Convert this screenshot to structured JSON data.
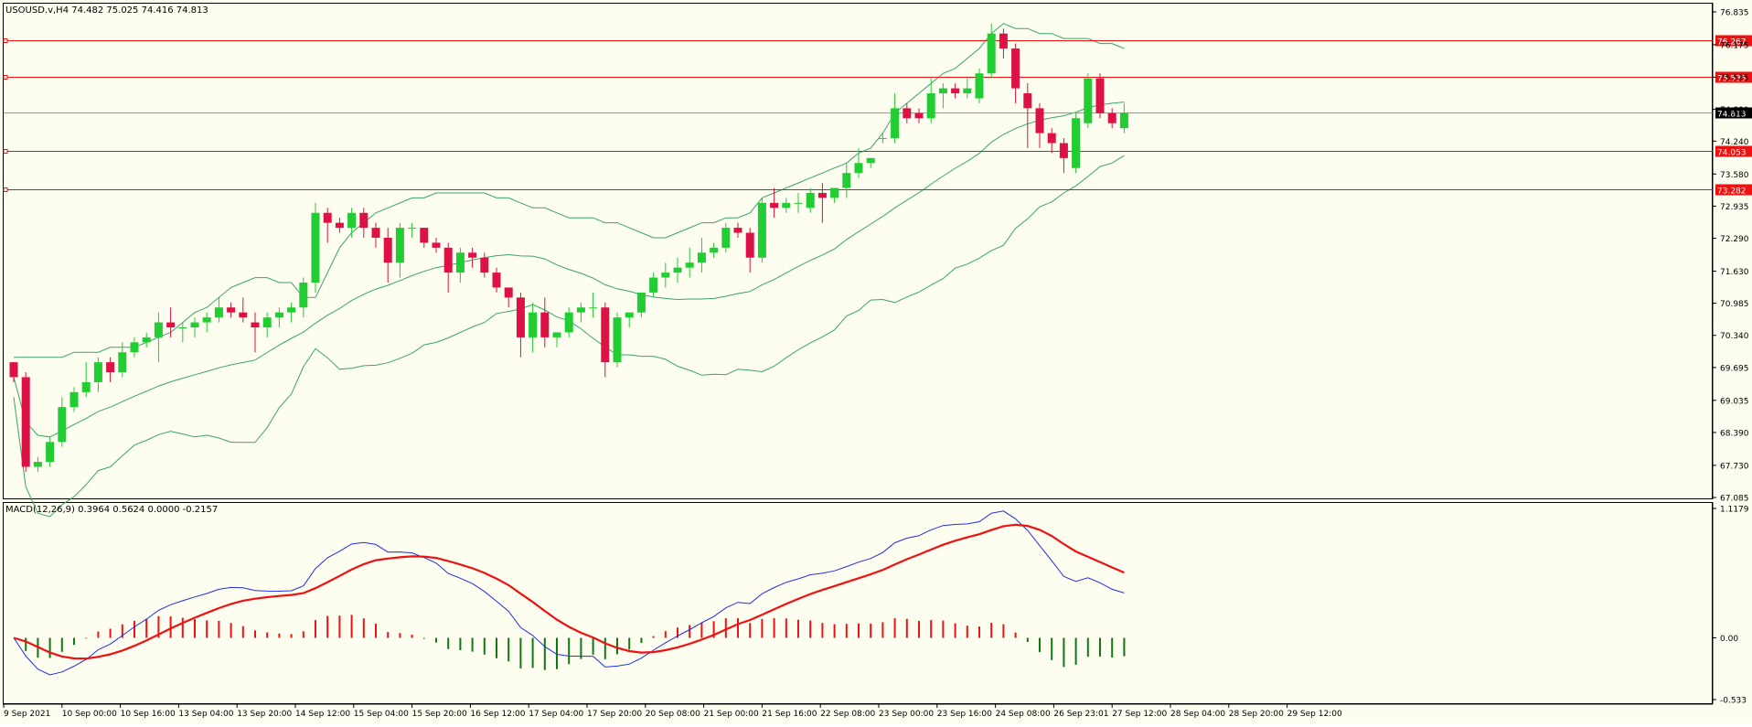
{
  "main": {
    "header": "USOUSD.v,H4  74.482 75.025 74.416 74.813"
  },
  "macd": {
    "header": "MACD(12,26,9) 0.3964 0.5624 0.0000 -0.2157"
  },
  "colors": {
    "background": "#fdfdf0",
    "bull": "#22cc33",
    "bear": "#dd1144",
    "bands": "#3aa56a",
    "hline": "#ee1111",
    "last_price_line": "#8899bb",
    "macd_line": "#1f2fe0",
    "signal_line": "#ee1111",
    "hist_pos": "#ee1111",
    "hist_neg": "#117711"
  },
  "chart_data": [
    {
      "type": "candlestick",
      "title": "USOUSD.v,H4  74.482 75.025 74.416 74.813",
      "y_ticks": [
        "76.835",
        "76.175",
        "75.525",
        "74.880",
        "74.240",
        "73.580",
        "72.935",
        "72.290",
        "71.630",
        "70.985",
        "70.340",
        "69.695",
        "69.035",
        "68.390",
        "67.730",
        "67.085"
      ],
      "ylim": [
        67.085,
        76.835
      ],
      "x_ticks": [
        "9 Sep 2021",
        "10 Sep 00:00",
        "10 Sep 16:00",
        "13 Sep 04:00",
        "13 Sep 20:00",
        "14 Sep 12:00",
        "15 Sep 04:00",
        "15 Sep 20:00",
        "16 Sep 12:00",
        "17 Sep 04:00",
        "17 Sep 20:00",
        "20 Sep 08:00",
        "21 Sep 00:00",
        "21 Sep 16:00",
        "22 Sep 08:00",
        "23 Sep 00:00",
        "23 Sep 16:00",
        "24 Sep 08:00",
        "26 Sep 23:01",
        "27 Sep 12:00",
        "28 Sep 04:00",
        "28 Sep 20:00",
        "29 Sep 12:00"
      ],
      "horizontal_lines": [
        76.267,
        75.535,
        74.053,
        73.282
      ],
      "price_labels": [
        "76.267",
        "75.535",
        "74.053",
        "73.282"
      ],
      "last_price": 74.813,
      "last_price_label": "74.813",
      "candles": [
        [
          69.8,
          69.8,
          69.4,
          69.5
        ],
        [
          69.5,
          69.6,
          67.6,
          67.7
        ],
        [
          67.7,
          67.9,
          67.6,
          67.8
        ],
        [
          67.8,
          68.3,
          67.7,
          68.2
        ],
        [
          68.2,
          69.1,
          68.1,
          68.9
        ],
        [
          68.9,
          69.3,
          68.8,
          69.2
        ],
        [
          69.2,
          69.8,
          69.1,
          69.4
        ],
        [
          69.4,
          69.9,
          69.2,
          69.8
        ],
        [
          69.8,
          69.9,
          69.4,
          69.6
        ],
        [
          69.6,
          70.2,
          69.5,
          70.0
        ],
        [
          70.0,
          70.3,
          69.9,
          70.2
        ],
        [
          70.2,
          70.4,
          70.1,
          70.3
        ],
        [
          70.3,
          70.8,
          69.8,
          70.6
        ],
        [
          70.6,
          70.9,
          70.3,
          70.5
        ],
        [
          70.5,
          70.6,
          70.2,
          70.5
        ],
        [
          70.5,
          70.7,
          70.3,
          70.6
        ],
        [
          70.6,
          70.8,
          70.4,
          70.7
        ],
        [
          70.7,
          71.1,
          70.6,
          70.9
        ],
        [
          70.9,
          71.0,
          70.7,
          70.8
        ],
        [
          70.8,
          71.1,
          70.6,
          70.7
        ],
        [
          70.6,
          70.8,
          70.0,
          70.5
        ],
        [
          70.5,
          70.8,
          70.3,
          70.7
        ],
        [
          70.7,
          70.9,
          70.5,
          70.8
        ],
        [
          70.8,
          71.0,
          70.6,
          70.9
        ],
        [
          70.9,
          71.5,
          70.7,
          71.4
        ],
        [
          71.4,
          73.0,
          71.2,
          72.8
        ],
        [
          72.8,
          72.9,
          72.2,
          72.6
        ],
        [
          72.6,
          72.7,
          72.4,
          72.5
        ],
        [
          72.5,
          72.9,
          72.3,
          72.8
        ],
        [
          72.8,
          72.9,
          72.3,
          72.5
        ],
        [
          72.5,
          72.6,
          72.1,
          72.3
        ],
        [
          72.3,
          72.5,
          71.4,
          71.8
        ],
        [
          71.8,
          72.6,
          71.5,
          72.5
        ],
        [
          72.5,
          72.6,
          72.3,
          72.5
        ],
        [
          72.5,
          72.5,
          72.1,
          72.2
        ],
        [
          72.2,
          72.3,
          72.0,
          72.1
        ],
        [
          72.1,
          72.2,
          71.2,
          71.6
        ],
        [
          71.6,
          72.1,
          71.4,
          72.0
        ],
        [
          72.0,
          72.1,
          71.7,
          71.9
        ],
        [
          71.9,
          72.0,
          71.5,
          71.6
        ],
        [
          71.6,
          71.7,
          71.2,
          71.3
        ],
        [
          71.3,
          71.3,
          70.9,
          71.1
        ],
        [
          71.1,
          71.2,
          69.9,
          70.3
        ],
        [
          70.3,
          71.0,
          70.0,
          70.8
        ],
        [
          70.8,
          71.1,
          70.1,
          70.3
        ],
        [
          70.3,
          70.4,
          70.1,
          70.4
        ],
        [
          70.4,
          70.9,
          70.3,
          70.8
        ],
        [
          70.8,
          71.0,
          70.6,
          70.9
        ],
        [
          70.9,
          71.2,
          70.7,
          70.9
        ],
        [
          70.9,
          71.0,
          69.5,
          69.8
        ],
        [
          69.8,
          70.8,
          69.7,
          70.7
        ],
        [
          70.7,
          70.8,
          70.5,
          70.8
        ],
        [
          70.8,
          71.2,
          70.7,
          71.2
        ],
        [
          71.2,
          71.6,
          71.1,
          71.5
        ],
        [
          71.5,
          71.8,
          71.3,
          71.6
        ],
        [
          71.6,
          71.9,
          71.4,
          71.7
        ],
        [
          71.7,
          72.1,
          71.5,
          71.8
        ],
        [
          71.8,
          72.3,
          71.6,
          72.0
        ],
        [
          72.0,
          72.2,
          71.9,
          72.1
        ],
        [
          72.1,
          72.6,
          72.0,
          72.5
        ],
        [
          72.5,
          72.6,
          72.3,
          72.4
        ],
        [
          72.4,
          72.5,
          71.6,
          71.9
        ],
        [
          71.9,
          73.1,
          71.8,
          73.0
        ],
        [
          73.0,
          73.3,
          72.7,
          72.9
        ],
        [
          72.9,
          73.1,
          72.8,
          73.0
        ],
        [
          73.0,
          73.2,
          72.8,
          73.0
        ],
        [
          72.9,
          73.3,
          72.8,
          73.2
        ],
        [
          73.2,
          73.4,
          72.6,
          73.1
        ],
        [
          73.1,
          73.3,
          73.0,
          73.3
        ],
        [
          73.3,
          73.8,
          73.1,
          73.6
        ],
        [
          73.6,
          74.1,
          73.5,
          73.8
        ],
        [
          73.8,
          73.9,
          73.7,
          73.9
        ],
        [
          74.3,
          74.4,
          74.2,
          74.3
        ],
        [
          74.3,
          75.2,
          74.2,
          74.9
        ],
        [
          74.9,
          75.0,
          74.6,
          74.7
        ],
        [
          74.8,
          74.9,
          74.6,
          74.7
        ],
        [
          74.7,
          75.5,
          74.6,
          75.2
        ],
        [
          75.2,
          75.4,
          74.9,
          75.3
        ],
        [
          75.3,
          75.4,
          75.1,
          75.2
        ],
        [
          75.2,
          75.5,
          75.1,
          75.3
        ],
        [
          75.1,
          75.7,
          75.0,
          75.6
        ],
        [
          75.6,
          76.6,
          75.5,
          76.4
        ],
        [
          76.4,
          76.5,
          75.9,
          76.1
        ],
        [
          76.1,
          76.2,
          75.0,
          75.3
        ],
        [
          75.2,
          75.4,
          74.1,
          74.9
        ],
        [
          74.9,
          75.0,
          74.1,
          74.4
        ],
        [
          74.4,
          74.5,
          74.0,
          74.2
        ],
        [
          74.2,
          74.3,
          73.6,
          73.9
        ],
        [
          73.7,
          74.8,
          73.6,
          74.7
        ],
        [
          74.6,
          75.6,
          74.5,
          75.5
        ],
        [
          75.5,
          75.6,
          74.7,
          74.8
        ],
        [
          74.8,
          74.9,
          74.5,
          74.6
        ],
        [
          74.5,
          75.0,
          74.4,
          74.8
        ]
      ],
      "bollinger_upper": [
        69.9,
        69.9,
        69.9,
        69.9,
        69.9,
        70.0,
        70.0,
        70.0,
        70.1,
        70.1,
        70.1,
        70.2,
        70.3,
        70.4,
        70.6,
        70.8,
        70.9,
        71.1,
        71.3,
        71.4,
        71.5,
        71.5,
        71.4,
        71.4,
        71.1,
        71.1,
        71.6,
        72.1,
        72.4,
        72.6,
        72.8,
        72.9,
        73.0,
        73.1,
        73.1,
        73.2,
        73.2,
        73.2,
        73.2,
        73.2,
        73.1,
        73.1,
        73.0,
        72.9,
        72.9,
        72.8,
        72.7,
        72.7,
        72.7,
        72.6,
        72.6,
        72.5,
        72.4,
        72.3,
        72.3,
        72.4,
        72.5,
        72.6,
        72.6,
        72.7,
        72.7,
        72.8,
        73.1,
        73.2,
        73.3,
        73.4,
        73.5,
        73.6,
        73.7,
        73.8,
        74.0,
        74.1,
        74.4,
        74.8,
        75.0,
        75.2,
        75.4,
        75.6,
        75.7,
        75.9,
        76.1,
        76.4,
        76.6,
        76.5,
        76.5,
        76.4,
        76.4,
        76.3,
        76.3,
        76.3,
        76.2,
        76.2,
        76.1
      ]
    },
    {
      "type": "macd",
      "title": "MACD(12,26,9) 0.3964 0.5624 0.0000 -0.2157",
      "y_ticks": [
        "1.1179",
        "0.00",
        "-0.533"
      ],
      "ylim": [
        -0.533,
        1.1179
      ]
    }
  ]
}
